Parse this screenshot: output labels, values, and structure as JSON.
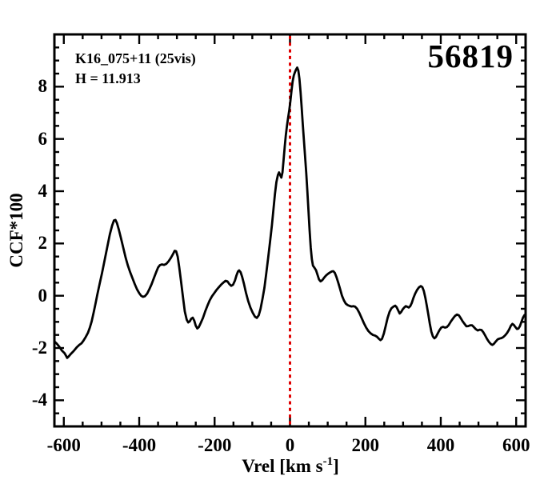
{
  "chart_data": {
    "type": "line",
    "title": "56819",
    "annotations": [
      "K16_075+11 (25vis)",
      "H = 11.913"
    ],
    "xlabel_parts": {
      "prefix": "Vrel [km s",
      "superscript": "-1",
      "suffix": "]"
    },
    "ylabel": "CCF*100",
    "xlim": [
      -625,
      625
    ],
    "ylim": [
      -5,
      10
    ],
    "x_major_ticks": [
      -600,
      -400,
      -200,
      0,
      200,
      400,
      600
    ],
    "x_tick_labels": [
      "-600",
      "-400",
      "-200",
      "0",
      "200",
      "400",
      "600"
    ],
    "x_minor_step": 50,
    "y_major_ticks": [
      -4,
      -2,
      0,
      2,
      4,
      6,
      8
    ],
    "y_tick_labels": [
      "-4",
      "-2",
      "0",
      "2",
      "4",
      "6",
      "8"
    ],
    "y_minor_step": 0.5,
    "grid": false,
    "legend": null,
    "frame_color": "#000000",
    "line_color": "#000000",
    "ref_line": {
      "x": 0,
      "color": "#e00000",
      "style": "dotted"
    },
    "series": [
      {
        "name": "CCF",
        "points": [
          [
            -625,
            -1.75
          ],
          [
            -619,
            -1.83
          ],
          [
            -612,
            -1.95
          ],
          [
            -605,
            -2.1
          ],
          [
            -598,
            -2.2
          ],
          [
            -594,
            -2.3
          ],
          [
            -591,
            -2.38
          ],
          [
            -587,
            -2.32
          ],
          [
            -581,
            -2.22
          ],
          [
            -574,
            -2.12
          ],
          [
            -566,
            -1.98
          ],
          [
            -559,
            -1.88
          ],
          [
            -553,
            -1.82
          ],
          [
            -548,
            -1.72
          ],
          [
            -542,
            -1.58
          ],
          [
            -536,
            -1.42
          ],
          [
            -531,
            -1.22
          ],
          [
            -526,
            -0.98
          ],
          [
            -521,
            -0.65
          ],
          [
            -516,
            -0.3
          ],
          [
            -511,
            0.05
          ],
          [
            -505,
            0.45
          ],
          [
            -499,
            0.85
          ],
          [
            -492,
            1.35
          ],
          [
            -485,
            1.85
          ],
          [
            -478,
            2.35
          ],
          [
            -472,
            2.68
          ],
          [
            -467,
            2.88
          ],
          [
            -463,
            2.9
          ],
          [
            -459,
            2.78
          ],
          [
            -454,
            2.52
          ],
          [
            -448,
            2.18
          ],
          [
            -442,
            1.82
          ],
          [
            -436,
            1.45
          ],
          [
            -430,
            1.15
          ],
          [
            -424,
            0.9
          ],
          [
            -418,
            0.68
          ],
          [
            -412,
            0.45
          ],
          [
            -406,
            0.25
          ],
          [
            -400,
            0.1
          ],
          [
            -395,
            0.0
          ],
          [
            -390,
            -0.04
          ],
          [
            -385,
            -0.02
          ],
          [
            -379,
            0.08
          ],
          [
            -373,
            0.25
          ],
          [
            -367,
            0.45
          ],
          [
            -361,
            0.68
          ],
          [
            -355,
            0.9
          ],
          [
            -350,
            1.08
          ],
          [
            -345,
            1.17
          ],
          [
            -340,
            1.2
          ],
          [
            -334,
            1.18
          ],
          [
            -328,
            1.22
          ],
          [
            -322,
            1.32
          ],
          [
            -316,
            1.45
          ],
          [
            -311,
            1.58
          ],
          [
            -306,
            1.72
          ],
          [
            -302,
            1.7
          ],
          [
            -298,
            1.5
          ],
          [
            -294,
            1.1
          ],
          [
            -289,
            0.55
          ],
          [
            -284,
            -0.05
          ],
          [
            -279,
            -0.6
          ],
          [
            -274,
            -0.92
          ],
          [
            -270,
            -1.02
          ],
          [
            -266,
            -0.98
          ],
          [
            -262,
            -0.88
          ],
          [
            -258,
            -0.84
          ],
          [
            -254,
            -0.95
          ],
          [
            -250,
            -1.15
          ],
          [
            -246,
            -1.25
          ],
          [
            -242,
            -1.2
          ],
          [
            -237,
            -1.05
          ],
          [
            -231,
            -0.85
          ],
          [
            -225,
            -0.6
          ],
          [
            -219,
            -0.38
          ],
          [
            -213,
            -0.18
          ],
          [
            -207,
            -0.02
          ],
          [
            -201,
            0.1
          ],
          [
            -195,
            0.22
          ],
          [
            -189,
            0.32
          ],
          [
            -183,
            0.42
          ],
          [
            -177,
            0.5
          ],
          [
            -171,
            0.57
          ],
          [
            -166,
            0.55
          ],
          [
            -161,
            0.45
          ],
          [
            -156,
            0.38
          ],
          [
            -151,
            0.42
          ],
          [
            -146,
            0.58
          ],
          [
            -142,
            0.78
          ],
          [
            -138,
            0.93
          ],
          [
            -135,
            0.97
          ],
          [
            -131,
            0.9
          ],
          [
            -127,
            0.72
          ],
          [
            -122,
            0.45
          ],
          [
            -117,
            0.12
          ],
          [
            -111,
            -0.2
          ],
          [
            -105,
            -0.45
          ],
          [
            -99,
            -0.65
          ],
          [
            -93,
            -0.8
          ],
          [
            -88,
            -0.85
          ],
          [
            -83,
            -0.75
          ],
          [
            -78,
            -0.5
          ],
          [
            -73,
            -0.12
          ],
          [
            -68,
            0.3
          ],
          [
            -63,
            0.85
          ],
          [
            -58,
            1.45
          ],
          [
            -53,
            2.05
          ],
          [
            -48,
            2.7
          ],
          [
            -44,
            3.3
          ],
          [
            -40,
            3.9
          ],
          [
            -36,
            4.35
          ],
          [
            -32,
            4.62
          ],
          [
            -29,
            4.72
          ],
          [
            -26,
            4.62
          ],
          [
            -23,
            4.52
          ],
          [
            -20,
            4.72
          ],
          [
            -17,
            5.2
          ],
          [
            -14,
            5.7
          ],
          [
            -11,
            6.15
          ],
          [
            -8,
            6.5
          ],
          [
            -5,
            6.8
          ],
          [
            -2,
            7.1
          ],
          [
            1,
            7.45
          ],
          [
            4,
            7.85
          ],
          [
            7,
            8.2
          ],
          [
            10,
            8.42
          ],
          [
            13,
            8.55
          ],
          [
            16,
            8.65
          ],
          [
            19,
            8.73
          ],
          [
            22,
            8.62
          ],
          [
            25,
            8.3
          ],
          [
            28,
            7.8
          ],
          [
            31,
            7.2
          ],
          [
            34,
            6.55
          ],
          [
            37,
            5.95
          ],
          [
            40,
            5.35
          ],
          [
            43,
            4.7
          ],
          [
            46,
            4.0
          ],
          [
            49,
            3.25
          ],
          [
            52,
            2.5
          ],
          [
            55,
            1.85
          ],
          [
            58,
            1.4
          ],
          [
            61,
            1.15
          ],
          [
            65,
            1.07
          ],
          [
            69,
            0.98
          ],
          [
            73,
            0.8
          ],
          [
            77,
            0.62
          ],
          [
            81,
            0.55
          ],
          [
            86,
            0.6
          ],
          [
            91,
            0.7
          ],
          [
            96,
            0.78
          ],
          [
            101,
            0.84
          ],
          [
            106,
            0.89
          ],
          [
            111,
            0.93
          ],
          [
            115,
            0.94
          ],
          [
            119,
            0.87
          ],
          [
            123,
            0.72
          ],
          [
            128,
            0.5
          ],
          [
            133,
            0.25
          ],
          [
            138,
            0.0
          ],
          [
            143,
            -0.18
          ],
          [
            148,
            -0.3
          ],
          [
            153,
            -0.36
          ],
          [
            158,
            -0.39
          ],
          [
            163,
            -0.41
          ],
          [
            168,
            -0.4
          ],
          [
            173,
            -0.42
          ],
          [
            178,
            -0.5
          ],
          [
            184,
            -0.66
          ],
          [
            190,
            -0.85
          ],
          [
            196,
            -1.05
          ],
          [
            202,
            -1.22
          ],
          [
            208,
            -1.35
          ],
          [
            214,
            -1.44
          ],
          [
            220,
            -1.5
          ],
          [
            226,
            -1.53
          ],
          [
            231,
            -1.57
          ],
          [
            236,
            -1.65
          ],
          [
            240,
            -1.7
          ],
          [
            244,
            -1.65
          ],
          [
            249,
            -1.45
          ],
          [
            254,
            -1.15
          ],
          [
            259,
            -0.85
          ],
          [
            264,
            -0.62
          ],
          [
            269,
            -0.48
          ],
          [
            274,
            -0.42
          ],
          [
            279,
            -0.38
          ],
          [
            283,
            -0.44
          ],
          [
            287,
            -0.56
          ],
          [
            291,
            -0.68
          ],
          [
            295,
            -0.62
          ],
          [
            299,
            -0.52
          ],
          [
            303,
            -0.45
          ],
          [
            307,
            -0.4
          ],
          [
            311,
            -0.42
          ],
          [
            315,
            -0.45
          ],
          [
            319,
            -0.4
          ],
          [
            323,
            -0.28
          ],
          [
            327,
            -0.1
          ],
          [
            332,
            0.08
          ],
          [
            337,
            0.22
          ],
          [
            342,
            0.32
          ],
          [
            347,
            0.37
          ],
          [
            351,
            0.33
          ],
          [
            355,
            0.18
          ],
          [
            359,
            -0.08
          ],
          [
            363,
            -0.38
          ],
          [
            367,
            -0.72
          ],
          [
            371,
            -1.08
          ],
          [
            375,
            -1.38
          ],
          [
            379,
            -1.56
          ],
          [
            383,
            -1.63
          ],
          [
            387,
            -1.58
          ],
          [
            391,
            -1.47
          ],
          [
            396,
            -1.33
          ],
          [
            401,
            -1.22
          ],
          [
            406,
            -1.19
          ],
          [
            411,
            -1.22
          ],
          [
            416,
            -1.2
          ],
          [
            421,
            -1.12
          ],
          [
            427,
            -0.98
          ],
          [
            433,
            -0.86
          ],
          [
            438,
            -0.77
          ],
          [
            443,
            -0.72
          ],
          [
            448,
            -0.75
          ],
          [
            453,
            -0.86
          ],
          [
            458,
            -0.98
          ],
          [
            463,
            -1.08
          ],
          [
            468,
            -1.17
          ],
          [
            473,
            -1.16
          ],
          [
            478,
            -1.13
          ],
          [
            483,
            -1.13
          ],
          [
            488,
            -1.2
          ],
          [
            493,
            -1.28
          ],
          [
            498,
            -1.33
          ],
          [
            503,
            -1.3
          ],
          [
            508,
            -1.31
          ],
          [
            513,
            -1.4
          ],
          [
            518,
            -1.53
          ],
          [
            523,
            -1.66
          ],
          [
            528,
            -1.77
          ],
          [
            533,
            -1.85
          ],
          [
            537,
            -1.88
          ],
          [
            541,
            -1.84
          ],
          [
            546,
            -1.75
          ],
          [
            551,
            -1.67
          ],
          [
            556,
            -1.64
          ],
          [
            561,
            -1.62
          ],
          [
            566,
            -1.58
          ],
          [
            571,
            -1.51
          ],
          [
            576,
            -1.42
          ],
          [
            581,
            -1.3
          ],
          [
            586,
            -1.15
          ],
          [
            590,
            -1.08
          ],
          [
            594,
            -1.12
          ],
          [
            598,
            -1.2
          ],
          [
            602,
            -1.27
          ],
          [
            606,
            -1.26
          ],
          [
            610,
            -1.16
          ],
          [
            614,
            -1.0
          ],
          [
            618,
            -0.84
          ],
          [
            622,
            -0.74
          ],
          [
            625,
            -0.73
          ]
        ]
      }
    ]
  }
}
